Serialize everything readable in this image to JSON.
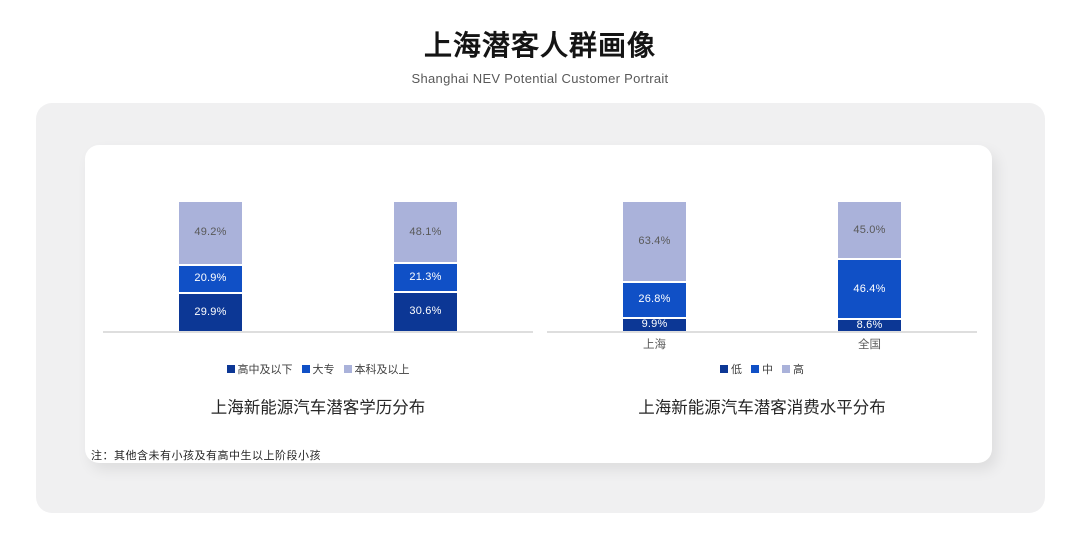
{
  "page": {
    "title": "上海潜客人群画像",
    "subtitle": "Shanghai NEV Potential Customer Portrait",
    "note": "注：其他含未有小孩及有高中生以上阶段小孩"
  },
  "colors": {
    "panel_bg": "#F0F0F1",
    "card_bg": "#FFFFFF",
    "axis_line": "#DEDEDE",
    "dark_blue": "#0C3795",
    "mid_blue": "#1050C6",
    "light_blue": "#AAB2DA",
    "label_on_blue": "#FFFFFF",
    "label_on_light": "#595959"
  },
  "chart_data": [
    {
      "type": "bar",
      "stacked": true,
      "percent": true,
      "title": "上海新能源汽车潜客学历分布",
      "categories": [
        "",
        ""
      ],
      "series": [
        {
          "name": "高中及以下",
          "color": "#0C3795",
          "label_color": "#FFFFFF",
          "values": [
            29.9,
            30.6
          ]
        },
        {
          "name": "大专",
          "color": "#1050C6",
          "label_color": "#FFFFFF",
          "values": [
            20.9,
            21.3
          ]
        },
        {
          "name": "本科及以上",
          "color": "#AAB2DA",
          "label_color": "#595959",
          "values": [
            49.2,
            48.1
          ]
        }
      ],
      "ylim": [
        0,
        100
      ],
      "legend_position": "bottom",
      "grid": false
    },
    {
      "type": "bar",
      "stacked": true,
      "percent": true,
      "title": "上海新能源汽车潜客消费水平分布",
      "categories": [
        "上海",
        "全国"
      ],
      "series": [
        {
          "name": "低",
          "color": "#0C3795",
          "label_color": "#FFFFFF",
          "values": [
            9.9,
            8.6
          ]
        },
        {
          "name": "中",
          "color": "#1050C6",
          "label_color": "#FFFFFF",
          "values": [
            26.8,
            46.4
          ]
        },
        {
          "name": "高",
          "color": "#AAB2DA",
          "label_color": "#595959",
          "values": [
            63.4,
            45.0
          ]
        }
      ],
      "ylim": [
        0,
        100
      ],
      "legend_position": "bottom",
      "grid": false
    }
  ]
}
